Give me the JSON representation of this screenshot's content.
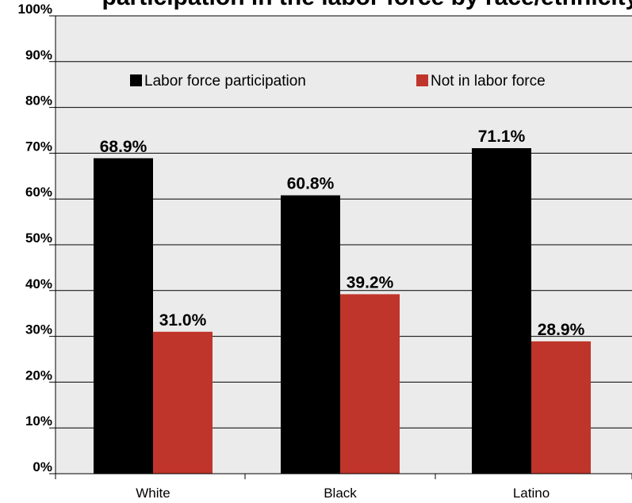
{
  "chart_data": {
    "type": "bar",
    "title": "participation in the labor force by race/ethnicity,",
    "categories": [
      "White",
      "Black",
      "Latino"
    ],
    "series": [
      {
        "name": "Labor force participation",
        "color": "#000000",
        "values": [
          68.9,
          60.8,
          71.1
        ],
        "labels": [
          "68.9%",
          "60.8%",
          "71.1%"
        ]
      },
      {
        "name": "Not in labor force",
        "color": "#c0352b",
        "values": [
          31.0,
          39.2,
          28.9
        ],
        "labels": [
          "31.0%",
          "39.2%",
          "28.9%"
        ]
      }
    ],
    "ylim": [
      0,
      100
    ],
    "yticks": [
      "0%",
      "10%",
      "20%",
      "30%",
      "40%",
      "50%",
      "60%",
      "70%",
      "80%",
      "90%",
      "100%"
    ],
    "grid": true,
    "plot_background": "#ebebeb",
    "legend_position": "top-center",
    "xlabel": "",
    "ylabel": ""
  }
}
